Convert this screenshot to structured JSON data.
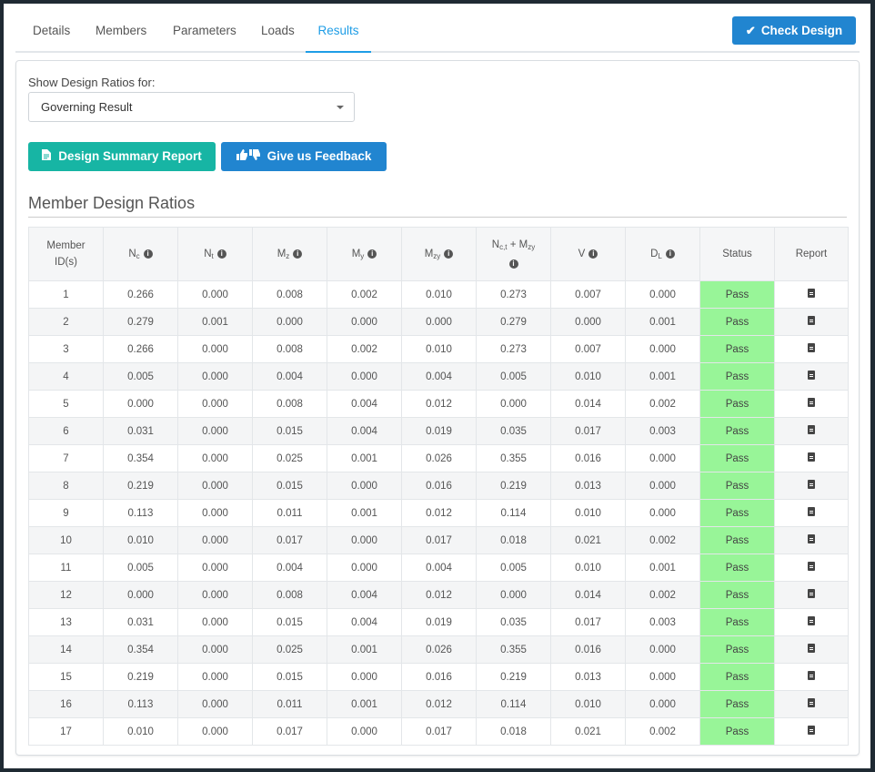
{
  "tabs": [
    {
      "label": "Details"
    },
    {
      "label": "Members"
    },
    {
      "label": "Parameters"
    },
    {
      "label": "Loads"
    },
    {
      "label": "Results"
    }
  ],
  "check_design_label": "Check Design",
  "show_ratios_label": "Show Design Ratios for:",
  "ratios_select_value": "Governing Result",
  "design_summary_label": "Design Summary Report",
  "feedback_label": "Give us Feedback",
  "section_title": "Member Design Ratios",
  "table": {
    "headers": {
      "member_id": "Member ID(s)",
      "nc": {
        "base": "N",
        "sub": "c"
      },
      "nt": {
        "base": "N",
        "sub": "t"
      },
      "mz": {
        "base": "M",
        "sub": "z"
      },
      "my": {
        "base": "M",
        "sub": "y"
      },
      "mzy": {
        "base": "M",
        "sub": "zy"
      },
      "nct_mzy": {
        "base1": "N",
        "sub1": "c,t",
        "mid": " + M",
        "sub2": "zy"
      },
      "v": {
        "base": "V"
      },
      "dl": {
        "base": "D",
        "sub": "L"
      },
      "status": "Status",
      "report": "Report"
    },
    "rows": [
      {
        "id": "1",
        "nc": "0.266",
        "nt": "0.000",
        "mz": "0.008",
        "my": "0.002",
        "mzy": "0.010",
        "nct_mzy": "0.273",
        "v": "0.007",
        "dl": "0.000",
        "status": "Pass"
      },
      {
        "id": "2",
        "nc": "0.279",
        "nt": "0.001",
        "mz": "0.000",
        "my": "0.000",
        "mzy": "0.000",
        "nct_mzy": "0.279",
        "v": "0.000",
        "dl": "0.001",
        "status": "Pass"
      },
      {
        "id": "3",
        "nc": "0.266",
        "nt": "0.000",
        "mz": "0.008",
        "my": "0.002",
        "mzy": "0.010",
        "nct_mzy": "0.273",
        "v": "0.007",
        "dl": "0.000",
        "status": "Pass"
      },
      {
        "id": "4",
        "nc": "0.005",
        "nt": "0.000",
        "mz": "0.004",
        "my": "0.000",
        "mzy": "0.004",
        "nct_mzy": "0.005",
        "v": "0.010",
        "dl": "0.001",
        "status": "Pass"
      },
      {
        "id": "5",
        "nc": "0.000",
        "nt": "0.000",
        "mz": "0.008",
        "my": "0.004",
        "mzy": "0.012",
        "nct_mzy": "0.000",
        "v": "0.014",
        "dl": "0.002",
        "status": "Pass"
      },
      {
        "id": "6",
        "nc": "0.031",
        "nt": "0.000",
        "mz": "0.015",
        "my": "0.004",
        "mzy": "0.019",
        "nct_mzy": "0.035",
        "v": "0.017",
        "dl": "0.003",
        "status": "Pass"
      },
      {
        "id": "7",
        "nc": "0.354",
        "nt": "0.000",
        "mz": "0.025",
        "my": "0.001",
        "mzy": "0.026",
        "nct_mzy": "0.355",
        "v": "0.016",
        "dl": "0.000",
        "status": "Pass"
      },
      {
        "id": "8",
        "nc": "0.219",
        "nt": "0.000",
        "mz": "0.015",
        "my": "0.000",
        "mzy": "0.016",
        "nct_mzy": "0.219",
        "v": "0.013",
        "dl": "0.000",
        "status": "Pass"
      },
      {
        "id": "9",
        "nc": "0.113",
        "nt": "0.000",
        "mz": "0.011",
        "my": "0.001",
        "mzy": "0.012",
        "nct_mzy": "0.114",
        "v": "0.010",
        "dl": "0.000",
        "status": "Pass"
      },
      {
        "id": "10",
        "nc": "0.010",
        "nt": "0.000",
        "mz": "0.017",
        "my": "0.000",
        "mzy": "0.017",
        "nct_mzy": "0.018",
        "v": "0.021",
        "dl": "0.002",
        "status": "Pass"
      },
      {
        "id": "11",
        "nc": "0.005",
        "nt": "0.000",
        "mz": "0.004",
        "my": "0.000",
        "mzy": "0.004",
        "nct_mzy": "0.005",
        "v": "0.010",
        "dl": "0.001",
        "status": "Pass"
      },
      {
        "id": "12",
        "nc": "0.000",
        "nt": "0.000",
        "mz": "0.008",
        "my": "0.004",
        "mzy": "0.012",
        "nct_mzy": "0.000",
        "v": "0.014",
        "dl": "0.002",
        "status": "Pass"
      },
      {
        "id": "13",
        "nc": "0.031",
        "nt": "0.000",
        "mz": "0.015",
        "my": "0.004",
        "mzy": "0.019",
        "nct_mzy": "0.035",
        "v": "0.017",
        "dl": "0.003",
        "status": "Pass"
      },
      {
        "id": "14",
        "nc": "0.354",
        "nt": "0.000",
        "mz": "0.025",
        "my": "0.001",
        "mzy": "0.026",
        "nct_mzy": "0.355",
        "v": "0.016",
        "dl": "0.000",
        "status": "Pass"
      },
      {
        "id": "15",
        "nc": "0.219",
        "nt": "0.000",
        "mz": "0.015",
        "my": "0.000",
        "mzy": "0.016",
        "nct_mzy": "0.219",
        "v": "0.013",
        "dl": "0.000",
        "status": "Pass"
      },
      {
        "id": "16",
        "nc": "0.113",
        "nt": "0.000",
        "mz": "0.011",
        "my": "0.001",
        "mzy": "0.012",
        "nct_mzy": "0.114",
        "v": "0.010",
        "dl": "0.000",
        "status": "Pass"
      },
      {
        "id": "17",
        "nc": "0.010",
        "nt": "0.000",
        "mz": "0.017",
        "my": "0.000",
        "mzy": "0.017",
        "nct_mzy": "0.018",
        "v": "0.021",
        "dl": "0.002",
        "status": "Pass"
      }
    ]
  },
  "colors": {
    "accent": "#2185d0",
    "tab_active": "#1e9de6",
    "summary_button": "#17b5a4",
    "pass": "#98f598"
  }
}
